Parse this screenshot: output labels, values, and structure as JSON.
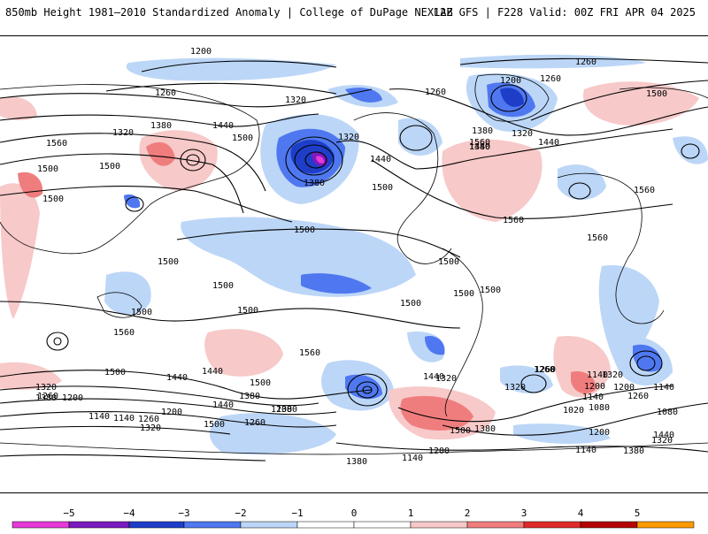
{
  "header": {
    "title_left": "850mb Height 1981–2010 Standardized Anomaly | College of DuPage NEXLAB",
    "title_right": "12Z GFS | F228 Valid: 00Z FRI APR 04 2025"
  },
  "colors": {
    "neg5": "#e83ad8",
    "neg4": "#7a1bbf",
    "neg3": "#1e3ec8",
    "neg2": "#4f78f0",
    "neg1": "#bcd6f7",
    "zero": "#ffffff",
    "pos1": "#f7c9c9",
    "pos2": "#f07d7d",
    "pos3": "#e02a2a",
    "pos4": "#b40404",
    "pos5": "#ff9a00"
  },
  "colorbar": {
    "ticks": [
      "−5",
      "−4",
      "−3",
      "−2",
      "−1",
      "0",
      "1",
      "2",
      "3",
      "4",
      "5"
    ]
  },
  "map": {
    "contour_labels": [
      "1200",
      "1200",
      "1260",
      "1260",
      "1200",
      "1260",
      "1320",
      "1260",
      "1320",
      "1500",
      "1320",
      "1380",
      "1440",
      "1500",
      "1380",
      "1320",
      "1440",
      "1500",
      "1560",
      "1440",
      "1380",
      "1440",
      "1500",
      "1560",
      "1500",
      "1500",
      "1560",
      "1560",
      "1380",
      "1560",
      "1500",
      "1500",
      "1500",
      "1500",
      "1500",
      "1500",
      "1500",
      "1500",
      "1500",
      "1560",
      "1560",
      "1440",
      "1500",
      "1500",
      "1440",
      "1320",
      "1380",
      "1260",
      "1200",
      "1140",
      "1140",
      "1200",
      "1260",
      "1320",
      "1380",
      "1440",
      "1500",
      "1380",
      "1260",
      "1200",
      "1320",
      "1440",
      "1500",
      "1380",
      "1260",
      "1140",
      "1200",
      "1140",
      "1080",
      "1020",
      "1140",
      "1080",
      "1140",
      "1200",
      "1260",
      "1320",
      "1200",
      "1140",
      "1380",
      "1320",
      "1440",
      "1380",
      "1320",
      "1200",
      "1260",
      "1320"
    ]
  }
}
